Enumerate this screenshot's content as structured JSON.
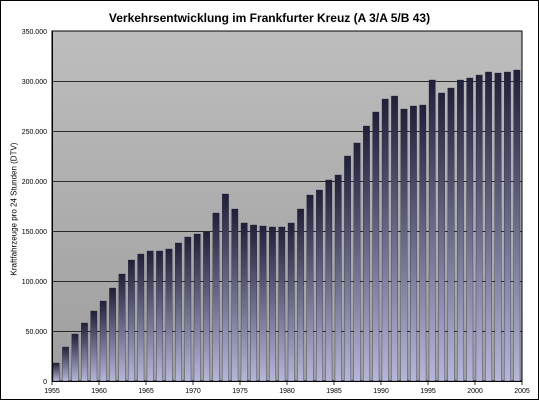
{
  "chart_data": {
    "type": "bar",
    "title": "Verkehrsentwicklung im Frankfurter Kreuz (A 3/A 5/B 43)",
    "ylabel": "Kraftfahrzeuge pro 24 Stunden (DTV)",
    "xlabel": "",
    "ylim": [
      0,
      350000
    ],
    "yticks": [
      0,
      50000,
      100000,
      150000,
      200000,
      250000,
      300000,
      350000
    ],
    "ytick_labels": [
      "0",
      "50.000",
      "100.000",
      "150.000",
      "200.000",
      "250.000",
      "300.000",
      "350.000"
    ],
    "xlim": [
      1955,
      2005
    ],
    "xticks": [
      1955,
      1960,
      1965,
      1970,
      1975,
      1980,
      1985,
      1990,
      1995,
      2000,
      2005
    ],
    "grid": true,
    "legend": "none",
    "colors": {
      "plot_top": "#bdbdbd",
      "plot_bottom": "#9e9e9e",
      "bar_light": "#b6b6dc",
      "bar_dark": "#20203a",
      "gridline": "#000000"
    },
    "years": [
      1955,
      1956,
      1957,
      1958,
      1959,
      1960,
      1961,
      1962,
      1963,
      1964,
      1965,
      1966,
      1967,
      1968,
      1969,
      1970,
      1971,
      1972,
      1973,
      1974,
      1975,
      1976,
      1977,
      1978,
      1979,
      1980,
      1981,
      1982,
      1983,
      1984,
      1985,
      1986,
      1987,
      1988,
      1989,
      1990,
      1991,
      1992,
      1993,
      1994,
      1995,
      1996,
      1997,
      1998,
      1999,
      2000,
      2001,
      2002,
      2003,
      2004
    ],
    "values": [
      18000,
      34000,
      47000,
      58000,
      70000,
      80000,
      93000,
      107000,
      121000,
      127000,
      130000,
      130000,
      132000,
      138000,
      144000,
      147000,
      149000,
      168000,
      187000,
      172000,
      158000,
      156000,
      155000,
      154000,
      154000,
      158000,
      172000,
      186000,
      191000,
      201000,
      206000,
      225000,
      238000,
      255000,
      269000,
      282000,
      285000,
      272000,
      275000,
      276000,
      301000,
      288000,
      293000,
      301000,
      303000,
      306000,
      309000,
      308000,
      309000,
      311000
    ]
  }
}
